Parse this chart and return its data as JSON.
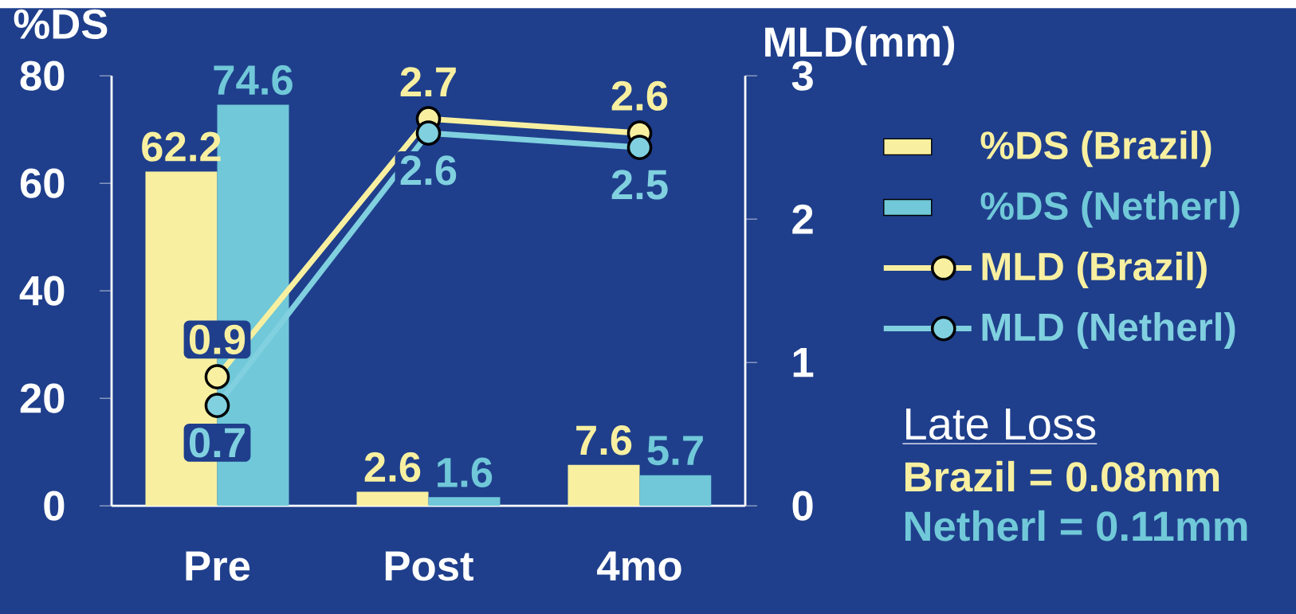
{
  "chart_data": {
    "type": "bar",
    "ylabel": "%DS",
    "y2label": "MLD(mm)",
    "categories": [
      "Pre",
      "Post",
      "4mo"
    ],
    "series": [
      {
        "name": "%DS (Brazil)",
        "color": "#f8f0a0",
        "values": [
          62.2,
          2.6,
          7.6
        ]
      },
      {
        "name": "%DS (Netherl)",
        "color": "#70c8d8",
        "values": [
          74.6,
          1.6,
          5.7
        ]
      },
      {
        "name": "MLD (Brazil)",
        "type": "line",
        "axis": "y2",
        "color": "#f8f0a0",
        "values": [
          0.9,
          2.7,
          2.6
        ]
      },
      {
        "name": "MLD (Netherl)",
        "type": "line",
        "axis": "y2",
        "color": "#80d0e0",
        "values": [
          0.7,
          2.6,
          2.5
        ]
      }
    ],
    "ylim": [
      0,
      80
    ],
    "yticks": [
      0,
      20,
      40,
      60,
      80
    ],
    "y2lim": [
      0,
      3
    ],
    "y2ticks": [
      0,
      1,
      2,
      3
    ],
    "data_labels": true,
    "legend": "right",
    "marker": "circle",
    "annotations": [
      "Late Loss",
      "Brazil = 0.08mm",
      "Netherl = 0.11mm"
    ]
  }
}
